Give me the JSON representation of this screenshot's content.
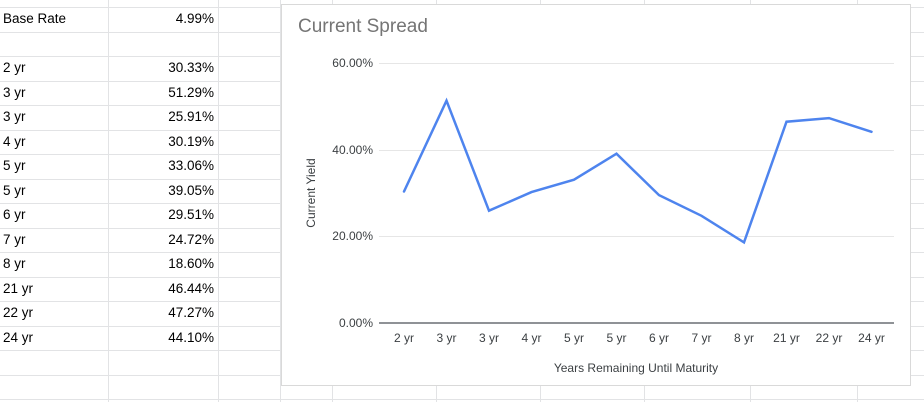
{
  "sheet": {
    "rows": [
      {
        "label": "Base Rate",
        "value": "4.99%"
      },
      {
        "label": "",
        "value": ""
      },
      {
        "label": "2 yr",
        "value": "30.33%"
      },
      {
        "label": "3 yr",
        "value": "51.29%"
      },
      {
        "label": "3 yr",
        "value": "25.91%"
      },
      {
        "label": "4 yr",
        "value": "30.19%"
      },
      {
        "label": "5 yr",
        "value": "33.06%"
      },
      {
        "label": "5 yr",
        "value": "39.05%"
      },
      {
        "label": "6 yr",
        "value": "29.51%"
      },
      {
        "label": "7 yr",
        "value": "24.72%"
      },
      {
        "label": "8 yr",
        "value": "18.60%"
      },
      {
        "label": "21 yr",
        "value": "46.44%"
      },
      {
        "label": "22 yr",
        "value": "47.27%"
      },
      {
        "label": "24 yr",
        "value": "44.10%"
      },
      {
        "label": "",
        "value": ""
      },
      {
        "label": "",
        "value": ""
      }
    ]
  },
  "chart": {
    "title": "Current Spread",
    "y_axis_title": "Current Yield",
    "x_axis_title": "Years Remaining Until Maturity",
    "title_color": "#757575",
    "line_color": "#4e84ee",
    "y_ticks": [
      {
        "value": 0,
        "label": "0.00%"
      },
      {
        "value": 20,
        "label": "20.00%"
      },
      {
        "value": 40,
        "label": "40.00%"
      },
      {
        "value": 60,
        "label": "60.00%"
      }
    ]
  },
  "chart_data": {
    "type": "line",
    "title": "Current Spread",
    "xlabel": "Years Remaining Until Maturity",
    "ylabel": "Current Yield",
    "categories": [
      "2 yr",
      "3 yr",
      "3 yr",
      "4 yr",
      "5 yr",
      "5 yr",
      "6 yr",
      "7 yr",
      "8 yr",
      "21 yr",
      "22 yr",
      "24 yr"
    ],
    "values": [
      30.33,
      51.29,
      25.91,
      30.19,
      33.06,
      39.05,
      29.51,
      24.72,
      18.6,
      46.44,
      47.27,
      44.1
    ],
    "ylim": [
      0,
      60
    ],
    "y_tick_labels": [
      "0.00%",
      "20.00%",
      "40.00%",
      "60.00%"
    ],
    "grid": true,
    "legend_position": "none"
  }
}
